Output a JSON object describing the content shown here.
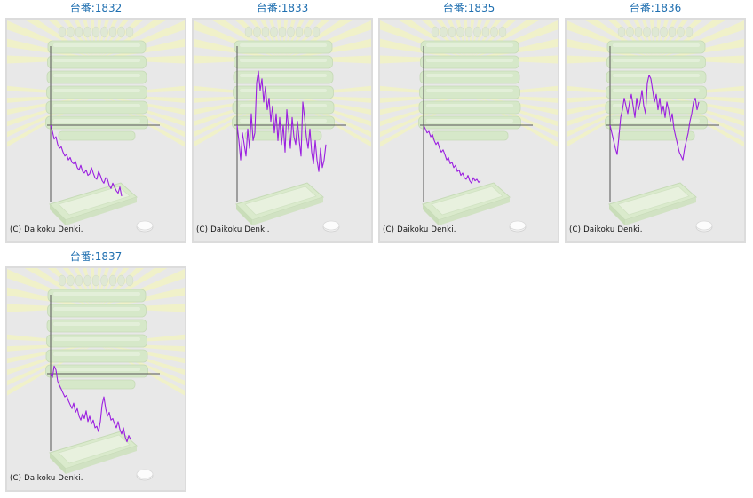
{
  "page": {
    "credit_text": "(C) Daikoku Denki."
  },
  "chart_data": [
    {
      "type": "line",
      "title": "台番:1832",
      "series_color": "#9b1fe0",
      "x": [
        0,
        1,
        2,
        3,
        4,
        5,
        6,
        7,
        8,
        9,
        10,
        11,
        12,
        13,
        14,
        15,
        16,
        17,
        18,
        19,
        20,
        21,
        22,
        23,
        24,
        25,
        26,
        27,
        28,
        29,
        30,
        31,
        32,
        33,
        34,
        35,
        36,
        37,
        38,
        39,
        40
      ],
      "values": [
        0,
        -8,
        -18,
        -15,
        -25,
        -30,
        -28,
        -35,
        -40,
        -38,
        -45,
        -42,
        -48,
        -50,
        -47,
        -55,
        -58,
        -52,
        -60,
        -62,
        -58,
        -65,
        -63,
        -55,
        -62,
        -68,
        -70,
        -60,
        -65,
        -72,
        -75,
        -68,
        -70,
        -78,
        -82,
        -75,
        -80,
        -85,
        -88,
        -80,
        -92
      ]
    },
    {
      "type": "line",
      "title": "台番:1833",
      "series_color": "#9b1fe0",
      "x": [
        0,
        1,
        2,
        3,
        4,
        5,
        6,
        7,
        8,
        9,
        10,
        11,
        12,
        13,
        14,
        15,
        16,
        17,
        18,
        19,
        20,
        21,
        22,
        23,
        24,
        25,
        26,
        27,
        28,
        29,
        30,
        31,
        32,
        33,
        34,
        35,
        36,
        37,
        38,
        39,
        40,
        41,
        42,
        43,
        44,
        45,
        46,
        47,
        48,
        49,
        50
      ],
      "values": [
        0,
        -20,
        -45,
        -10,
        -25,
        -40,
        -5,
        -30,
        15,
        -20,
        -10,
        55,
        70,
        45,
        60,
        30,
        50,
        20,
        35,
        5,
        25,
        -10,
        15,
        -20,
        10,
        -25,
        0,
        -35,
        20,
        -5,
        -30,
        10,
        -15,
        -25,
        5,
        -20,
        -40,
        30,
        10,
        -15,
        -30,
        -5,
        -35,
        -50,
        -20,
        -45,
        -60,
        -30,
        -55,
        -45,
        -25
      ]
    },
    {
      "type": "line",
      "title": "台番:1835",
      "series_color": "#9b1fe0",
      "x": [
        0,
        1,
        2,
        3,
        4,
        5,
        6,
        7,
        8,
        9,
        10,
        11,
        12,
        13,
        14,
        15,
        16,
        17,
        18,
        19,
        20,
        21,
        22,
        23,
        24,
        25,
        26,
        27,
        28,
        29,
        30,
        31,
        32
      ],
      "values": [
        0,
        -5,
        -10,
        -8,
        -15,
        -12,
        -20,
        -25,
        -22,
        -30,
        -35,
        -32,
        -38,
        -45,
        -42,
        -50,
        -48,
        -55,
        -52,
        -60,
        -58,
        -65,
        -62,
        -68,
        -70,
        -65,
        -72,
        -75,
        -68,
        -72,
        -70,
        -74,
        -72
      ]
    },
    {
      "type": "line",
      "title": "台番:1836",
      "series_color": "#9b1fe0",
      "x": [
        0,
        1,
        2,
        3,
        4,
        5,
        6,
        7,
        8,
        9,
        10,
        11,
        12,
        13,
        14,
        15,
        16,
        17,
        18,
        19,
        20,
        21,
        22,
        23,
        24,
        25,
        26,
        27,
        28,
        29,
        30,
        31,
        32,
        33,
        34,
        35,
        36,
        37,
        38,
        39,
        40,
        41,
        42,
        43,
        44,
        45,
        46,
        47,
        48,
        49,
        50
      ],
      "values": [
        0,
        -10,
        -20,
        -30,
        -38,
        -15,
        10,
        20,
        35,
        25,
        15,
        30,
        40,
        25,
        10,
        35,
        20,
        30,
        45,
        25,
        15,
        55,
        65,
        60,
        45,
        30,
        40,
        20,
        35,
        15,
        25,
        10,
        30,
        20,
        5,
        15,
        -5,
        -15,
        -25,
        -35,
        -40,
        -45,
        -30,
        -20,
        -10,
        5,
        15,
        30,
        35,
        20,
        30
      ]
    },
    {
      "type": "line",
      "title": "台番:1837",
      "series_color": "#9b1fe0",
      "x": [
        0,
        1,
        2,
        3,
        4,
        5,
        6,
        7,
        8,
        9,
        10,
        11,
        12,
        13,
        14,
        15,
        16,
        17,
        18,
        19,
        20,
        21,
        22,
        23,
        24,
        25,
        26,
        27,
        28,
        29,
        30,
        31,
        32,
        33,
        34,
        35,
        36,
        37,
        38,
        39,
        40,
        41,
        42,
        43,
        44,
        45
      ],
      "values": [
        0,
        -5,
        10,
        5,
        -10,
        -15,
        -20,
        -25,
        -30,
        -28,
        -35,
        -40,
        -45,
        -38,
        -50,
        -45,
        -55,
        -60,
        -52,
        -58,
        -48,
        -62,
        -55,
        -65,
        -60,
        -70,
        -68,
        -75,
        -62,
        -40,
        -30,
        -45,
        -55,
        -50,
        -60,
        -58,
        -65,
        -70,
        -62,
        -72,
        -78,
        -70,
        -82,
        -88,
        -80,
        -85
      ]
    }
  ]
}
